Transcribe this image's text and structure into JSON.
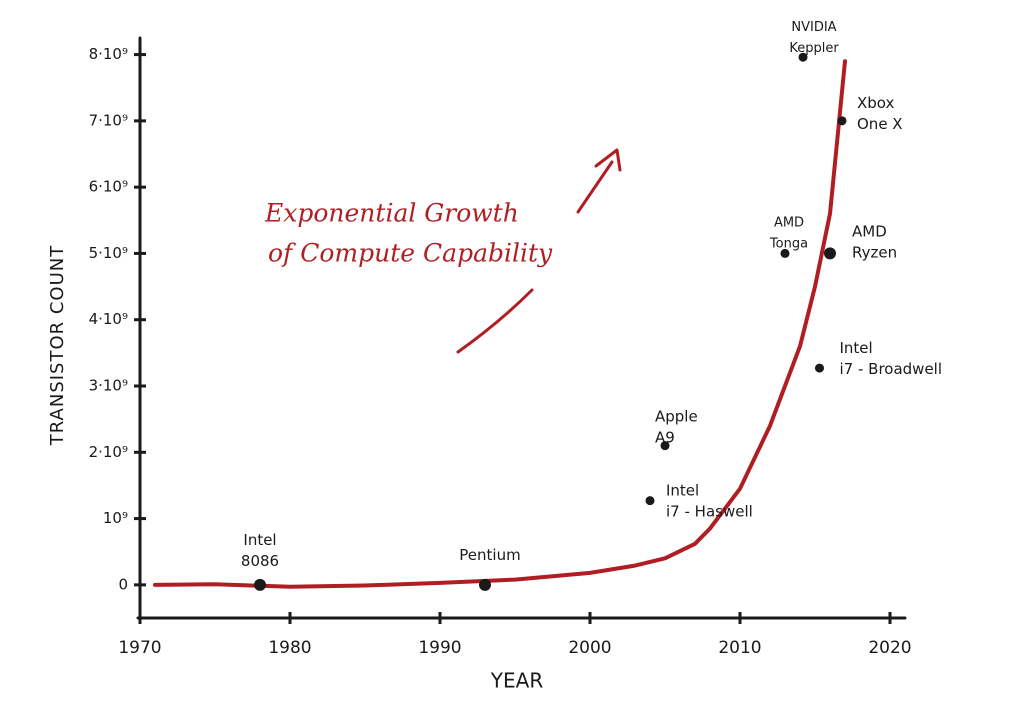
{
  "chart_data": {
    "type": "scatter",
    "annotation": [
      "Exponential Growth",
      "of Compute Capability"
    ],
    "xlabel": "YEAR",
    "ylabel": "TRANSISTOR COUNT",
    "x": [
      1978,
      1993,
      2004,
      2005,
      2013,
      2016,
      2015.3,
      2014.2,
      2016.8
    ],
    "values": [
      0,
      0,
      1270000000,
      2100000000,
      5000000000,
      5000000000,
      3270000000,
      7960000000,
      7000000000
    ],
    "point_labels": [
      [
        "Intel",
        "8086"
      ],
      [
        "Pentium"
      ],
      [
        "Intel",
        "i7 - Haswell"
      ],
      [
        "Apple",
        "A9"
      ],
      [
        "AMD",
        "Tonga"
      ],
      [
        "AMD",
        "Ryzen"
      ],
      [
        "Intel",
        "i7 - Broadwell"
      ],
      [
        "NVIDIA",
        "Keppler"
      ],
      [
        "Xbox",
        "One X"
      ]
    ],
    "point_color": "#1a1a1a",
    "trend": {
      "color": "#b01e23",
      "x": [
        1971,
        1975,
        1980,
        1985,
        1990,
        1995,
        2000,
        2003,
        2005,
        2007,
        2008,
        2010,
        2012,
        2014,
        2015,
        2016,
        2017
      ],
      "values": [
        0,
        10000000,
        -30000000,
        -10000000,
        30000000,
        80000000,
        180000000,
        290000000,
        400000000,
        620000000,
        850000000,
        1450000000,
        2400000000,
        3600000000,
        4500000000,
        5600000000,
        7900000000
      ]
    },
    "xlim": [
      1970,
      2021
    ],
    "ylim": [
      -500000000,
      8250000000
    ],
    "xticks": [
      1970,
      1980,
      1990,
      2000,
      2010,
      2020
    ],
    "yticks": [
      0,
      {
        "value": 1000000000,
        "label": "10⁹"
      },
      {
        "value": 2000000000,
        "label": "2·10⁹"
      },
      {
        "value": 3000000000,
        "label": "3·10⁹"
      },
      {
        "value": 4000000000,
        "label": "4·10⁹"
      },
      {
        "value": 5000000000,
        "label": "5·10⁹"
      },
      {
        "value": 6000000000,
        "label": "6·10⁹"
      },
      {
        "value": 7000000000,
        "label": "7·10⁹"
      },
      {
        "value": 8000000000,
        "label": "8·10⁹"
      }
    ]
  }
}
